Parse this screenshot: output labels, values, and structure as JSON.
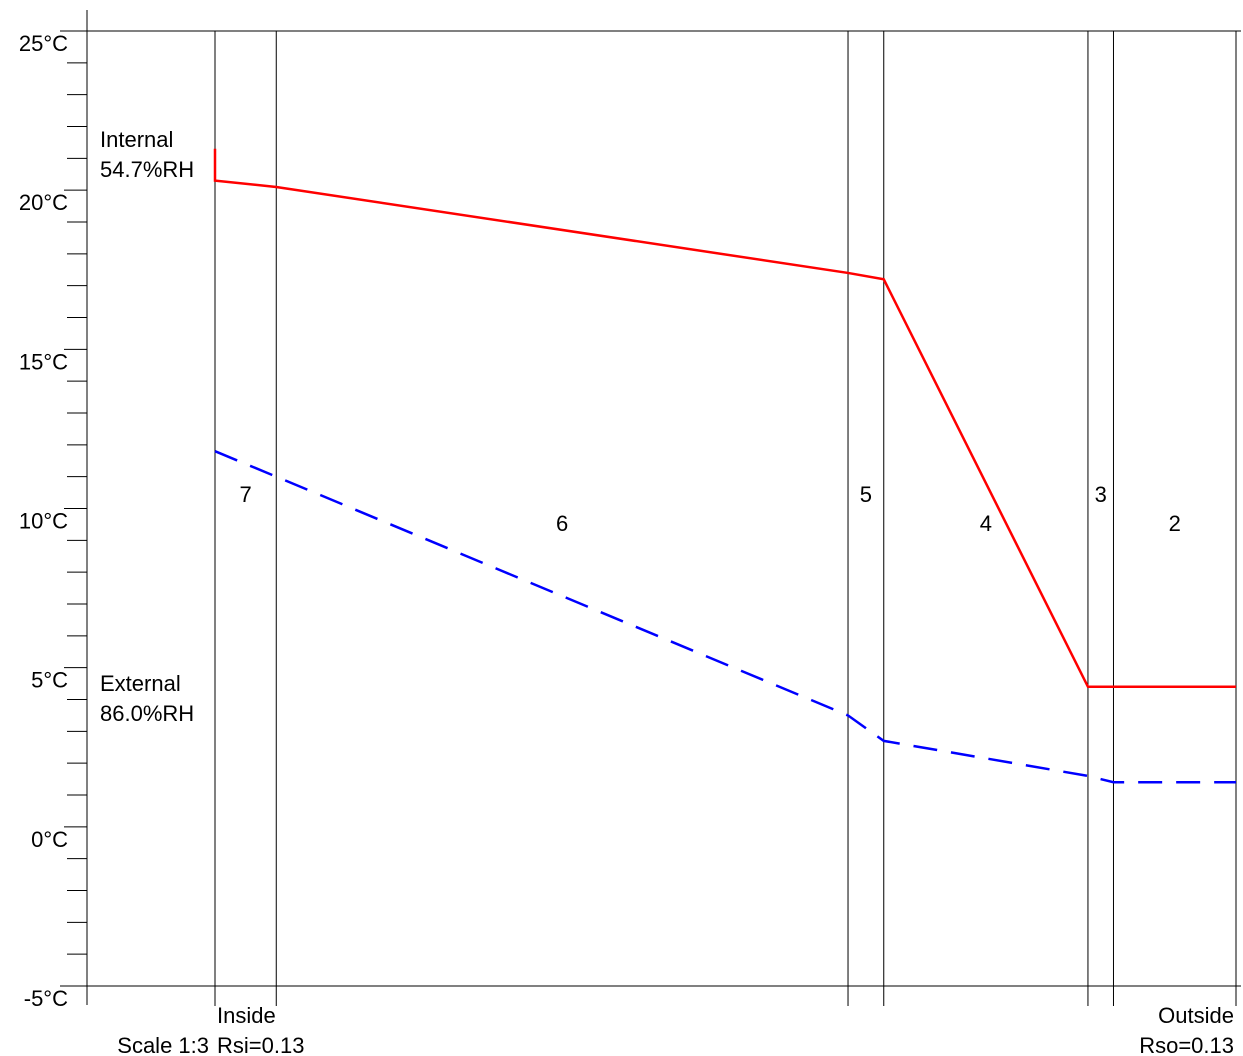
{
  "chart_data": {
    "type": "line",
    "title": "",
    "xlabel": "",
    "ylabel": "",
    "y_unit": "°C",
    "ylim": [
      -5,
      25
    ],
    "y_ticks": [
      {
        "value": 25,
        "label": "25°C"
      },
      {
        "value": 20,
        "label": "20°C"
      },
      {
        "value": 15,
        "label": "15°C"
      },
      {
        "value": 10,
        "label": "10°C"
      },
      {
        "value": 5,
        "label": "5°C"
      },
      {
        "value": 0,
        "label": "0°C"
      },
      {
        "value": -5,
        "label": "-5°C"
      }
    ],
    "minor_tick_step": 1,
    "x_mm": {
      "min": 0,
      "max": 100
    },
    "layers": [
      {
        "label": "7",
        "start_mm": 0,
        "end_mm": 6
      },
      {
        "label": "6",
        "start_mm": 6,
        "end_mm": 62
      },
      {
        "label": "5",
        "start_mm": 62,
        "end_mm": 65.5
      },
      {
        "label": "4",
        "start_mm": 65.5,
        "end_mm": 85.5
      },
      {
        "label": "3",
        "start_mm": 85.5,
        "end_mm": 88
      },
      {
        "label": "2",
        "start_mm": 88,
        "end_mm": 100
      }
    ],
    "internal": {
      "title": "Internal",
      "rh": "54.7%RH"
    },
    "external": {
      "title": "External",
      "rh": "86.0%RH"
    },
    "inside": {
      "label": "Inside",
      "resistance": "Rsi=0.13"
    },
    "outside": {
      "label": "Outside",
      "resistance": "Rso=0.13"
    },
    "scale": "Scale 1:3",
    "series": [
      {
        "style": "solid",
        "color": "#ff0000",
        "points": [
          [
            0,
            21.3
          ],
          [
            0,
            20.3
          ],
          [
            6,
            20.1
          ],
          [
            62,
            17.4
          ],
          [
            65.5,
            17.2
          ],
          [
            85.5,
            4.4
          ],
          [
            88,
            4.4
          ],
          [
            100,
            4.4
          ]
        ]
      },
      {
        "style": "dashed",
        "color": "#0000ff",
        "points": [
          [
            0,
            11.8
          ],
          [
            6,
            11.0
          ],
          [
            62,
            3.5
          ],
          [
            65.5,
            2.7
          ],
          [
            85.5,
            1.6
          ],
          [
            88,
            1.4
          ],
          [
            100,
            1.4
          ]
        ]
      }
    ]
  }
}
